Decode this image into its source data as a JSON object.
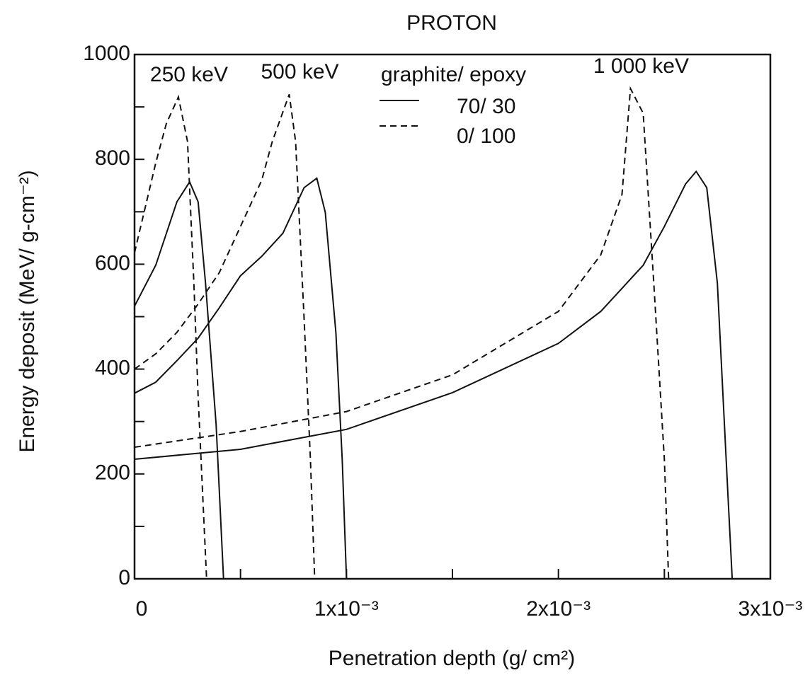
{
  "chart_data": {
    "type": "line",
    "title": "PROTON",
    "x_label": "Penetration depth (g/ cm²)",
    "y_label": "Energy deposit (MeV/ g-cm⁻²)",
    "xlim": [
      0,
      0.003
    ],
    "ylim": [
      0,
      1000
    ],
    "xticks": [
      {
        "value": 0,
        "label": "0"
      },
      {
        "value": 0.001,
        "label": "1x10⁻³"
      },
      {
        "value": 0.002,
        "label": "2x10⁻³"
      },
      {
        "value": 0.003,
        "label": "3x10⁻³"
      }
    ],
    "xminorticks": [
      0.0005,
      0.0015,
      0.0025
    ],
    "yticks": [
      0,
      200,
      400,
      600,
      800,
      1000
    ],
    "yminorticks": [
      100,
      300,
      500,
      700,
      900
    ],
    "legend": {
      "title": "graphite/ epoxy",
      "entries": [
        {
          "label": "70/ 30",
          "dash": false
        },
        {
          "label": "0/ 100",
          "dash": true
        }
      ]
    },
    "annotations": [
      "250 keV",
      "500 keV",
      "1 000 keV"
    ],
    "color": "#111111",
    "series": [
      {
        "legend": 0,
        "annotation": 0,
        "x": [
          0,
          0.0001,
          0.0002,
          0.00026,
          0.0003,
          0.000335,
          0.000385,
          0.00042
        ],
        "values": [
          520,
          598,
          719,
          757,
          719,
          564,
          294,
          0
        ]
      },
      {
        "legend": 1,
        "annotation": 0,
        "x": [
          0,
          0.0001,
          0.00015,
          0.000207,
          0.00025,
          0.00028,
          0.0003,
          0.00034
        ],
        "values": [
          622,
          793,
          868,
          919,
          834,
          564,
          348,
          0
        ]
      },
      {
        "legend": 0,
        "annotation": 1,
        "x": [
          0,
          0.0001,
          0.0002,
          0.0003,
          0.0004,
          0.0005,
          0.0006,
          0.0007,
          0.0008,
          0.00086,
          0.0009,
          0.00095,
          0.00098,
          0.001
        ],
        "values": [
          354,
          375,
          416,
          459,
          517,
          578,
          615,
          659,
          746,
          764,
          699,
          470,
          227,
          0
        ]
      },
      {
        "legend": 1,
        "annotation": 1,
        "x": [
          0,
          0.0001,
          0.0002,
          0.0003,
          0.0004,
          0.0005,
          0.0006,
          0.00065,
          0.00073,
          0.00076,
          0.0008,
          0.00083,
          0.00085
        ],
        "values": [
          400,
          429,
          470,
          524,
          584,
          672,
          760,
          834,
          924,
          834,
          497,
          227,
          0
        ]
      },
      {
        "legend": 0,
        "annotation": 2,
        "x": [
          0,
          0.0005,
          0.001,
          0.0015,
          0.002,
          0.0022,
          0.0024,
          0.0025,
          0.0026,
          0.00265,
          0.0027,
          0.00275,
          0.0028,
          0.00282
        ],
        "values": [
          228,
          247,
          285,
          355,
          449,
          510,
          598,
          672,
          753,
          777,
          746,
          564,
          159,
          0
        ]
      },
      {
        "legend": 1,
        "annotation": 2,
        "x": [
          0,
          0.0005,
          0.001,
          0.0015,
          0.002,
          0.0022,
          0.0023,
          0.00234,
          0.0024,
          0.00245,
          0.0025,
          0.00252
        ],
        "values": [
          251,
          281,
          319,
          389,
          510,
          618,
          733,
          935,
          888,
          564,
          227,
          0
        ]
      }
    ]
  }
}
